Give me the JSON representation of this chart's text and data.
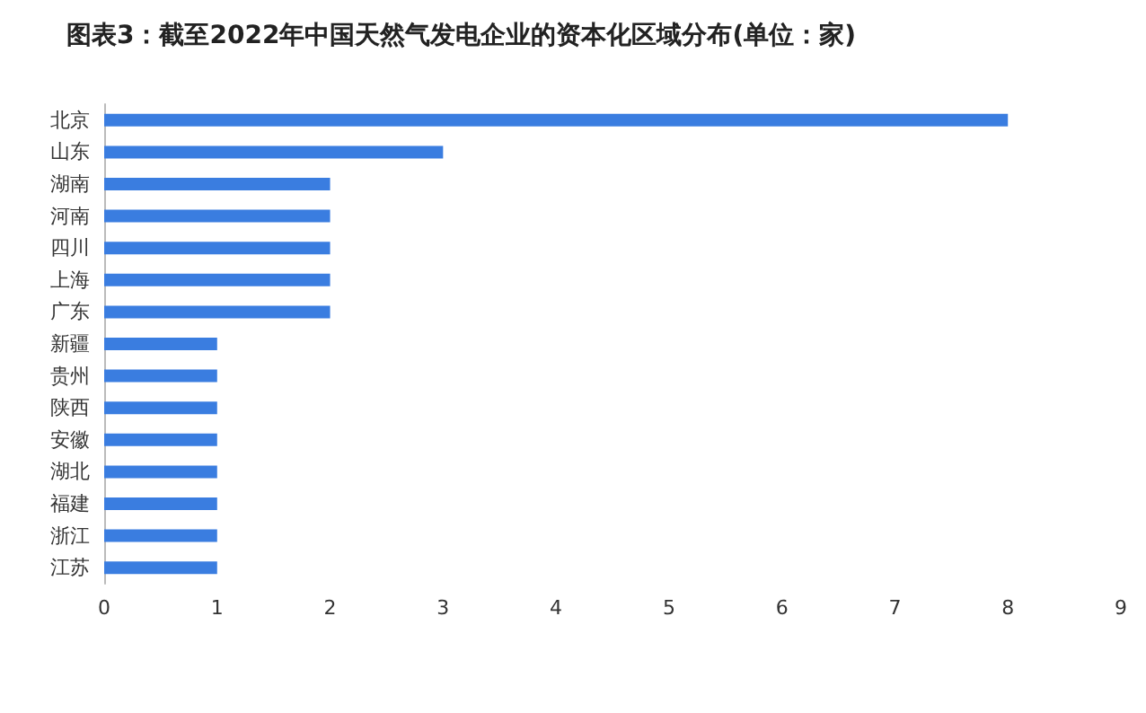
{
  "chart_data": {
    "type": "bar",
    "orientation": "horizontal",
    "title": "图表3：截至2022年中国天然气发电企业的资本化区域分布(单位：家)",
    "categories": [
      "北京",
      "山东",
      "湖南",
      "河南",
      "四川",
      "上海",
      "广东",
      "新疆",
      "贵州",
      "陕西",
      "安徽",
      "湖北",
      "福建",
      "浙江",
      "江苏"
    ],
    "values": [
      8,
      3,
      2,
      2,
      2,
      2,
      2,
      1,
      1,
      1,
      1,
      1,
      1,
      1,
      1
    ],
    "color": "#3a7de0",
    "xlim": [
      0,
      9
    ],
    "xticks": [
      0,
      1,
      2,
      3,
      4,
      5,
      6,
      7,
      8,
      9
    ],
    "grid": false
  }
}
